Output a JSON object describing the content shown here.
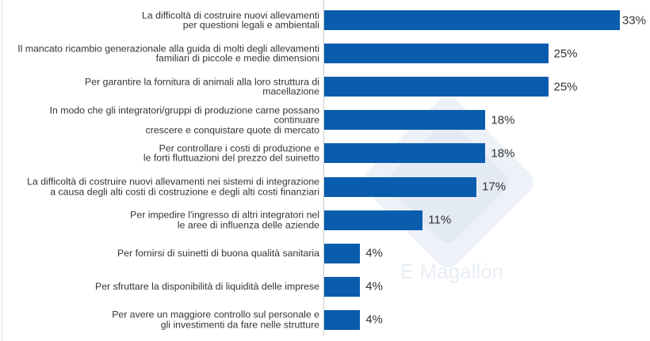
{
  "chart_data": {
    "type": "bar",
    "orientation": "horizontal",
    "categories": [
      "La difficoltà di costruire nuovi allevamenti\nper questioni legali e ambientali",
      "Il mancato ricambio generazionale alla guida di molti degli allevamenti\nfamiliari di piccole e medie dimensioni",
      "Per garantire la fornitura di animali alla loro struttura di\nmacellazione",
      "In modo che gli integratori/gruppi di produzione carne possano\ncontinuare\ncrescere e conquistare quote di mercato",
      "Per controllare i costi di produzione e\nle forti fluttuazioni del prezzo del suinetto",
      "La difficoltà di costruire nuovi allevamenti nei sistemi di integrazione\na causa degli alti costi di costruzione e degli alti costi finanziari",
      "Per impedire l'ingresso di altri integratori nel\nle aree di influenza delle aziende",
      "Per fornirsi di suinetti di buona qualità sanitaria",
      "Per sfruttare la disponibilità di liquidità delle imprese",
      "Per avere un maggiore controllo sul personale e\ngli investimenti da fare nelle strutture"
    ],
    "values": [
      33,
      25,
      25,
      18,
      18,
      17,
      11,
      4,
      4,
      4
    ],
    "value_labels": [
      "33%",
      "25%",
      "25%",
      "18%",
      "18%",
      "17%",
      "11%",
      "4%",
      "4%",
      "4%"
    ],
    "unit": "%",
    "xlim": [
      0,
      33
    ],
    "grid": false,
    "bar_color": "#0a5cad"
  },
  "watermark": {
    "text": "E Magallón"
  }
}
